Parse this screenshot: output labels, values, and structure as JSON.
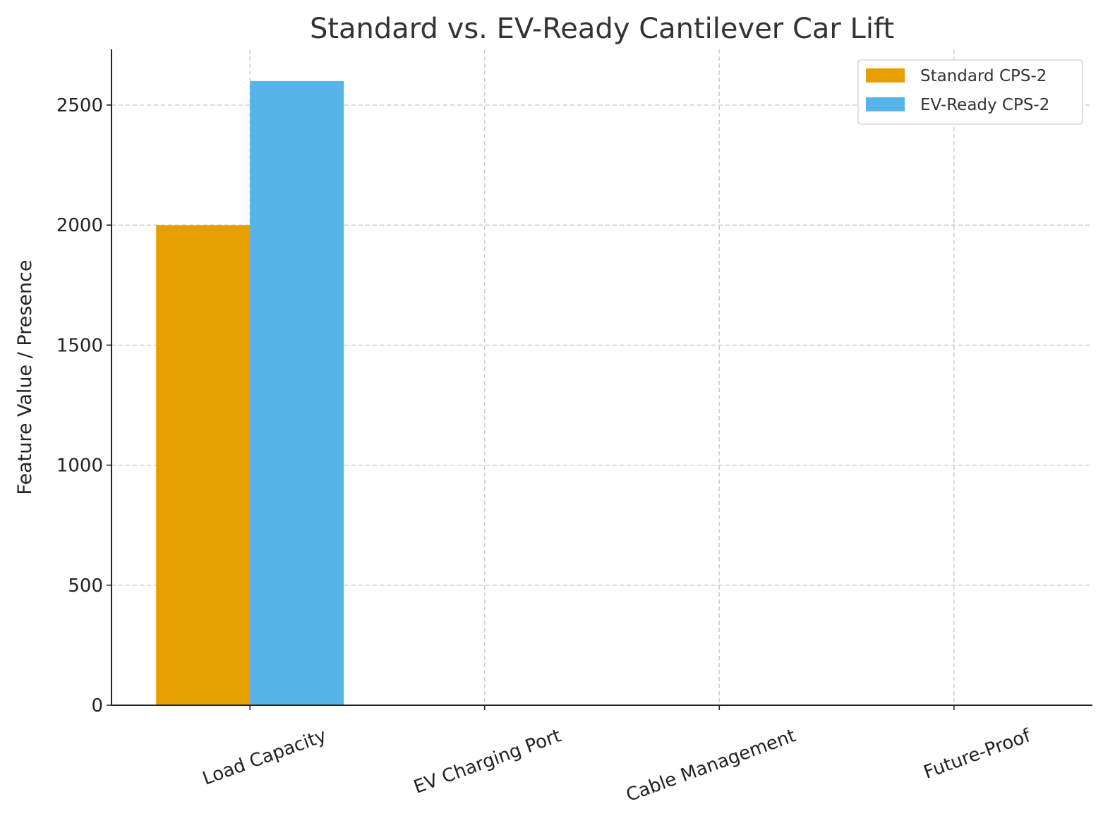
{
  "chart_data": {
    "type": "bar",
    "title": "Standard vs. EV-Ready Cantilever Car Lift",
    "xlabel": "",
    "ylabel": "Feature Value / Presence",
    "categories": [
      "Load Capacity",
      "EV Charging Port",
      "Cable Management",
      "Future-Proof"
    ],
    "series": [
      {
        "name": "Standard CPS-2",
        "values": [
          2000,
          0,
          0,
          0
        ],
        "color": "#E69F00"
      },
      {
        "name": "EV-Ready CPS-2",
        "values": [
          2600,
          1,
          1,
          1
        ],
        "color": "#56B4E9"
      }
    ],
    "ylim": [
      0,
      2732
    ],
    "yticks": [
      0,
      500,
      1000,
      1500,
      2000,
      2500
    ],
    "grid": true,
    "legend": "top-right"
  }
}
